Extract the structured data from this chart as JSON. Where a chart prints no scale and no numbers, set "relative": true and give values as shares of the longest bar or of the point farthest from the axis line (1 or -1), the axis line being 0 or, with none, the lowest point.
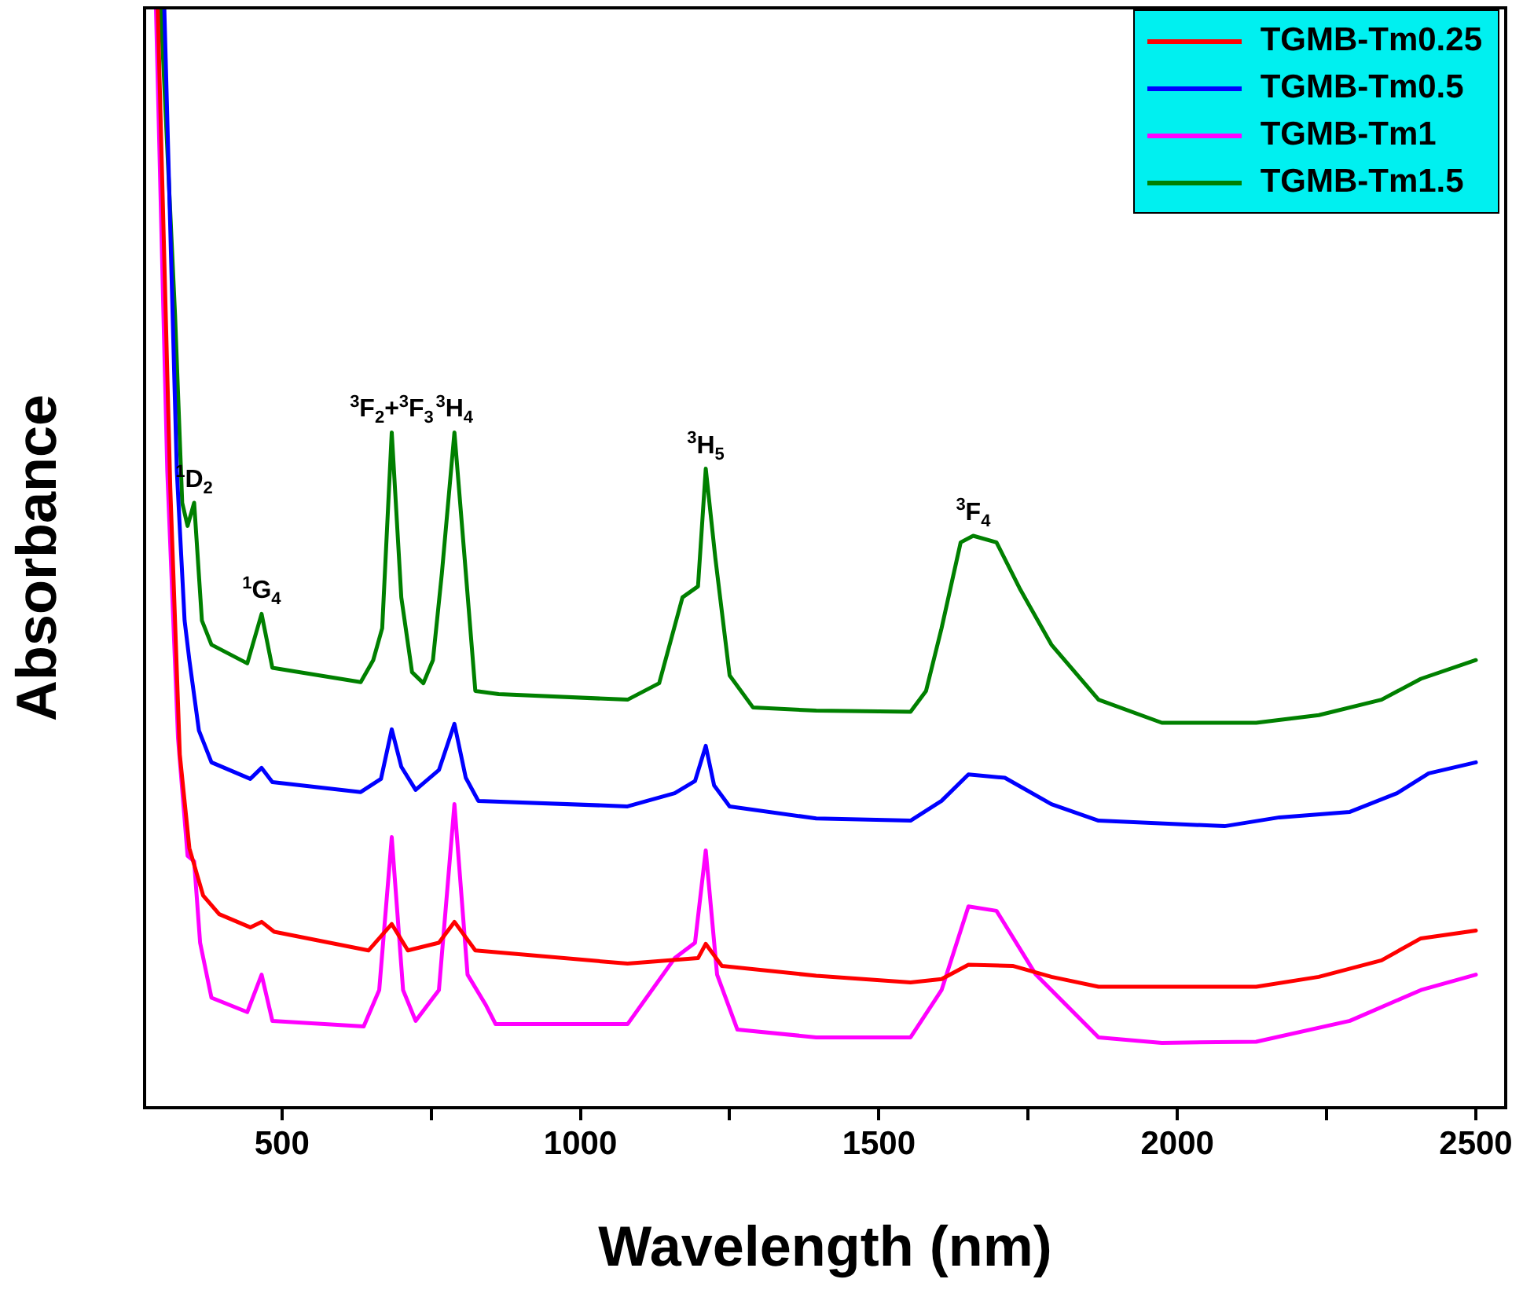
{
  "chart_data": {
    "type": "line",
    "xlabel": "Wavelength (nm)",
    "ylabel": "Absorbance",
    "relative": true,
    "legend": "top right",
    "marker": "none",
    "line_style": "solid",
    "xlim": [
      270,
      2550
    ],
    "xticks": [
      500,
      {
        "value": 750,
        "label": null
      },
      1000,
      {
        "value": 1250,
        "label": null
      },
      1500,
      {
        "value": 1750,
        "label": null
      },
      2000,
      {
        "value": 2250,
        "label": null
      },
      2500
    ],
    "tick_labels": "x",
    "series": [
      {
        "name": "TGMB-Tm0.25",
        "color": "#ff0000",
        "x": [
          292,
          313,
          329,
          345,
          368,
          395,
          447,
          466,
          487,
          645,
          684,
          711,
          763,
          789,
          824,
          1079,
          1197,
          1210,
          1237,
          1395,
          1553,
          1605,
          1650,
          1724,
          1789,
          1868,
          2132,
          2237,
          2342,
          2408,
          2500
        ],
        "values": [
          1.0,
          0.564,
          0.321,
          0.236,
          0.193,
          0.176,
          0.164,
          0.169,
          0.16,
          0.143,
          0.167,
          0.143,
          0.15,
          0.169,
          0.143,
          0.131,
          0.136,
          0.149,
          0.129,
          0.12,
          0.114,
          0.117,
          0.13,
          0.129,
          0.119,
          0.11,
          0.11,
          0.119,
          0.134,
          0.154,
          0.161
        ]
      },
      {
        "name": "TGMB-Tm0.5",
        "color": "#0000ff",
        "x": [
          303,
          324,
          337,
          345,
          361,
          382,
          447,
          466,
          484,
          632,
          666,
          684,
          700,
          724,
          763,
          789,
          808,
          829,
          1079,
          1158,
          1192,
          1210,
          1224,
          1250,
          1395,
          1553,
          1605,
          1650,
          1711,
          1789,
          1868,
          2079,
          2171,
          2289,
          2368,
          2421,
          2500
        ],
        "values": [
          1.0,
          0.579,
          0.443,
          0.407,
          0.343,
          0.314,
          0.299,
          0.309,
          0.296,
          0.287,
          0.299,
          0.344,
          0.31,
          0.289,
          0.307,
          0.349,
          0.3,
          0.279,
          0.274,
          0.286,
          0.297,
          0.329,
          0.293,
          0.274,
          0.263,
          0.261,
          0.279,
          0.303,
          0.3,
          0.276,
          0.261,
          0.256,
          0.264,
          0.269,
          0.286,
          0.304,
          0.314
        ]
      },
      {
        "name": "TGMB-Tm1",
        "color": "#ff00ff",
        "x": [
          289,
          308,
          326,
          342,
          353,
          363,
          382,
          442,
          466,
          484,
          637,
          663,
          684,
          703,
          724,
          763,
          789,
          811,
          842,
          858,
          1079,
          1158,
          1192,
          1210,
          1229,
          1263,
          1395,
          1553,
          1605,
          1650,
          1697,
          1763,
          1868,
          1974,
          2132,
          2289,
          2408,
          2500
        ],
        "values": [
          1.0,
          0.579,
          0.336,
          0.229,
          0.224,
          0.15,
          0.1,
          0.087,
          0.121,
          0.079,
          0.074,
          0.107,
          0.246,
          0.107,
          0.079,
          0.107,
          0.276,
          0.121,
          0.093,
          0.076,
          0.076,
          0.136,
          0.15,
          0.234,
          0.121,
          0.071,
          0.064,
          0.064,
          0.107,
          0.183,
          0.179,
          0.121,
          0.064,
          0.059,
          0.06,
          0.079,
          0.107,
          0.121
        ]
      },
      {
        "name": "TGMB-Tm1.5",
        "color": "#008000",
        "x": [
          297,
          321,
          333,
          342,
          353,
          366,
          382,
          442,
          466,
          484,
          632,
          653,
          668,
          684,
          700,
          718,
          737,
          753,
          768,
          789,
          805,
          824,
          863,
          1079,
          1132,
          1171,
          1197,
          1210,
          1226,
          1250,
          1289,
          1395,
          1553,
          1579,
          1605,
          1637,
          1658,
          1697,
          1737,
          1789,
          1868,
          1974,
          2132,
          2237,
          2342,
          2408,
          2500
        ],
        "values": [
          1.0,
          0.721,
          0.55,
          0.529,
          0.55,
          0.443,
          0.421,
          0.404,
          0.449,
          0.4,
          0.387,
          0.407,
          0.436,
          0.614,
          0.464,
          0.396,
          0.386,
          0.407,
          0.486,
          0.614,
          0.507,
          0.379,
          0.376,
          0.371,
          0.386,
          0.464,
          0.474,
          0.581,
          0.5,
          0.393,
          0.364,
          0.361,
          0.36,
          0.379,
          0.436,
          0.514,
          0.52,
          0.514,
          0.471,
          0.421,
          0.371,
          0.35,
          0.35,
          0.357,
          0.371,
          0.39,
          0.407
        ]
      }
    ],
    "annotations": [
      {
        "text": "$^{1}$D$_{2}$",
        "x": 353,
        "y": 0.55
      },
      {
        "text": "$^{1}$G$_{4}$",
        "x": 466,
        "y": 0.449
      },
      {
        "text": "$^{3}$F$_{2}$+$^{3}$F$_{3}$",
        "x": 684,
        "y": 0.614
      },
      {
        "text": "$^{3}$H$_{4}$",
        "x": 789,
        "y": 0.614
      },
      {
        "text": "$^{3}$H$_{5}$",
        "x": 1210,
        "y": 0.581
      },
      {
        "text": "$^{3}$F$_{4}$",
        "x": 1658,
        "y": 0.52
      }
    ]
  }
}
